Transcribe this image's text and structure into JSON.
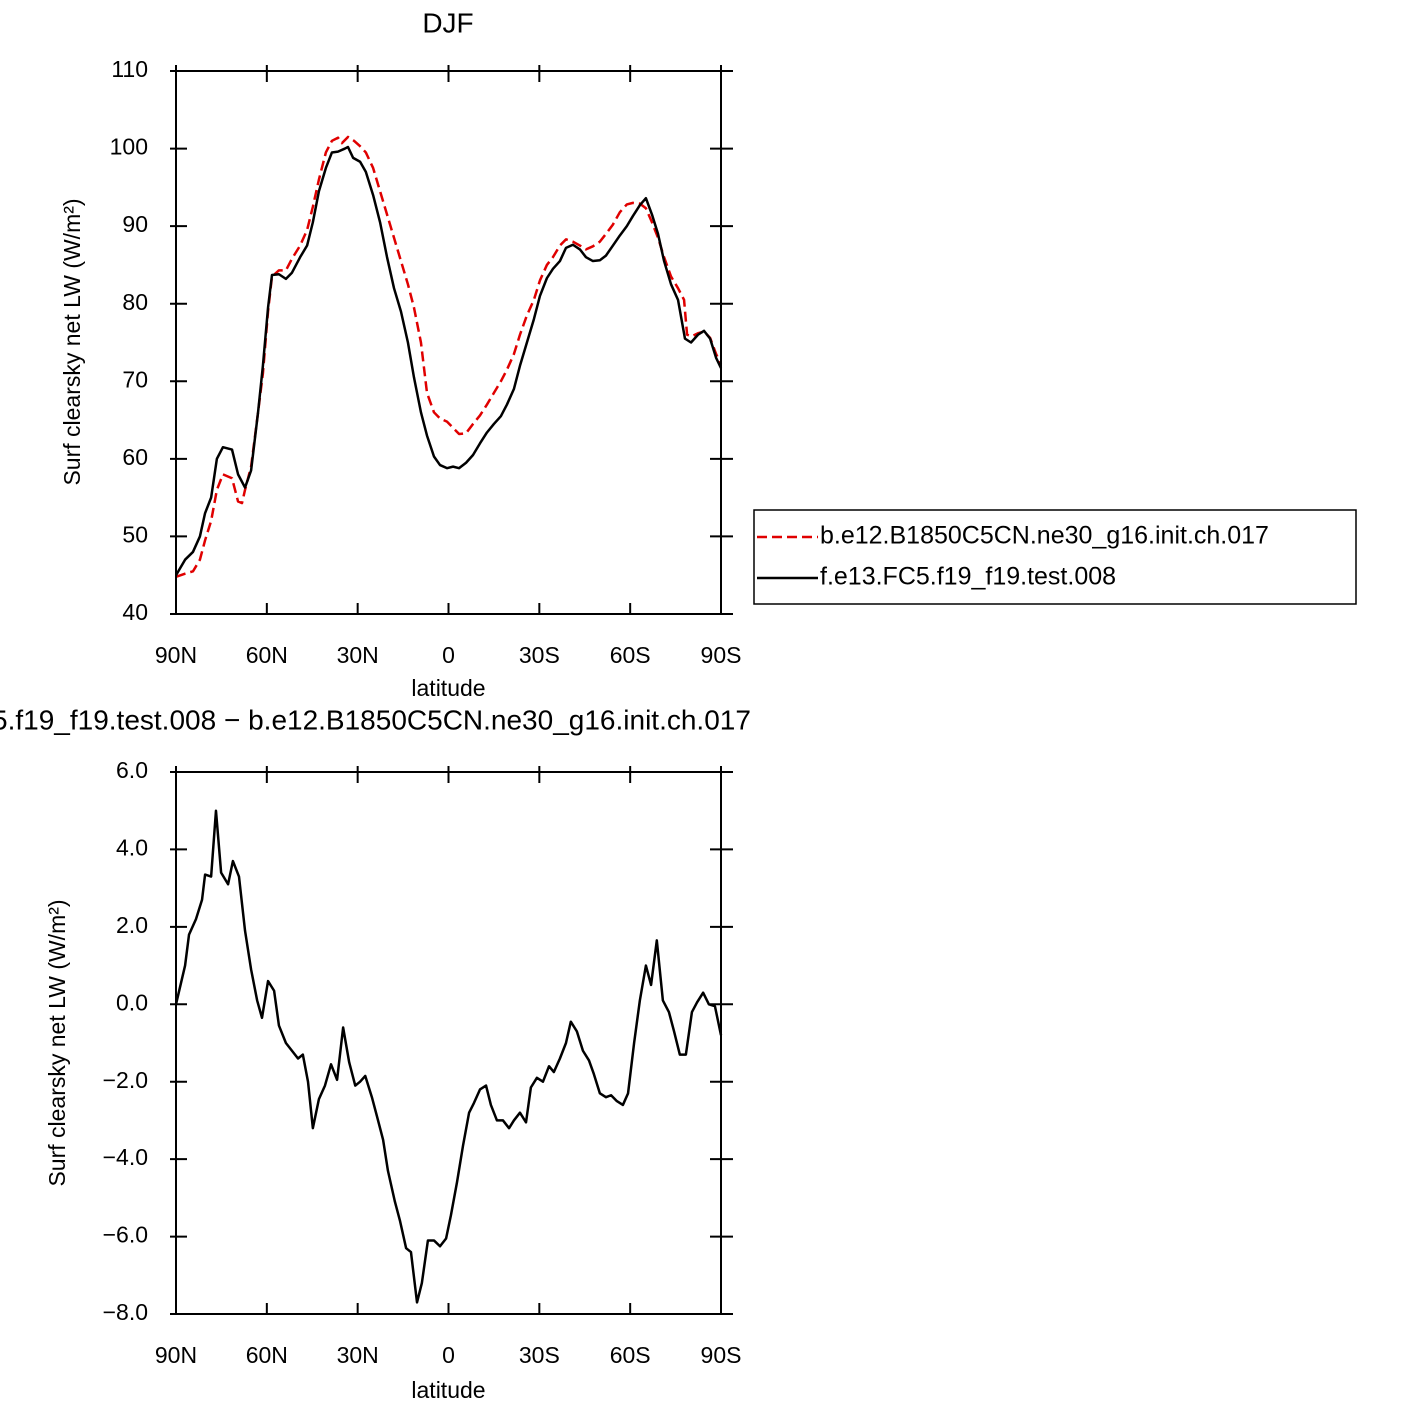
{
  "chart_data": [
    {
      "type": "line",
      "title": "DJF",
      "xlabel": "latitude",
      "ylabel": "Surf clearsky net LW (W/m²)",
      "xlim": [
        90,
        -90
      ],
      "xticks": [
        {
          "value": 90,
          "label": "90N"
        },
        {
          "value": 60,
          "label": "60N"
        },
        {
          "value": 30,
          "label": "30N"
        },
        0,
        {
          "value": -30,
          "label": "30S"
        },
        {
          "value": -60,
          "label": "60S"
        },
        {
          "value": -90,
          "label": "90S"
        }
      ],
      "ylim": [
        40,
        110
      ],
      "yticks": [
        40,
        50,
        60,
        70,
        80,
        90,
        100,
        110
      ],
      "legend": true,
      "series": [
        {
          "name": "b.e12.B1850C5CN.ne30_g16.init.ch.017",
          "color": "#e00000",
          "dash": "dashed",
          "x": [
            90,
            87.0,
            84.4,
            82.1,
            80.4,
            78.4,
            76.5,
            74.5,
            71.5,
            69.5,
            68.2,
            67.2,
            65.2,
            62.9,
            61.3,
            59.6,
            58.3,
            56.0,
            53.7,
            51.7,
            49.0,
            46.7,
            44.8,
            42.8,
            40.5,
            38.5,
            36.5,
            35.2,
            33.2,
            31.2,
            29.2,
            27.3,
            24.9,
            22.6,
            20.3,
            18.0,
            15.7,
            13.4,
            11.4,
            9.1,
            7.1,
            4.8,
            2.8,
            0.5,
            -1.5,
            -3.5,
            -5.8,
            -8.1,
            -10.4,
            -12.7,
            -15.0,
            -17.3,
            -19.3,
            -21.6,
            -23.6,
            -25.9,
            -28.2,
            -30.2,
            -32.5,
            -34.5,
            -36.8,
            -38.8,
            -41.1,
            -43.4,
            -45.4,
            -47.7,
            -50.0,
            -52.0,
            -54.3,
            -56.6,
            -58.9,
            -60.9,
            -63.2,
            -65.2,
            -67.2,
            -69.2,
            -71.2,
            -73.5,
            -75.8,
            -77.8,
            -78.8,
            -80.4,
            -82.4,
            -84.4,
            -86.4,
            -88.4,
            -90
          ],
          "values": [
            44.8,
            45.2,
            45.5,
            47,
            49.5,
            52,
            56,
            58,
            57.5,
            54.5,
            54.3,
            56,
            59,
            66,
            71,
            79,
            83.5,
            84.3,
            84.3,
            85.8,
            87.5,
            89.5,
            92.5,
            96,
            99.5,
            101,
            101.4,
            100.7,
            101.5,
            101,
            100.3,
            99.5,
            97.5,
            94.5,
            91.5,
            88.5,
            85.5,
            82.5,
            79.5,
            75,
            68.5,
            66,
            65.2,
            64.8,
            64,
            63.2,
            63.3,
            64.5,
            65.6,
            67,
            68.5,
            70,
            71.5,
            73.5,
            76,
            78.5,
            80.5,
            83,
            85,
            86,
            87.5,
            88.3,
            88,
            87.5,
            87,
            87.4,
            88,
            89,
            90.2,
            91.8,
            92.8,
            93,
            92.9,
            92.3,
            90.5,
            88.5,
            86,
            83.5,
            82,
            80.5,
            76,
            75.8,
            76.2,
            76.4,
            75.6,
            73.5,
            72.2
          ]
        },
        {
          "name": "f.e13.FC5.f19_f19.test.008",
          "color": "#000000",
          "dash": "solid",
          "x": [
            90,
            87.0,
            84.4,
            82.1,
            80.4,
            78.4,
            76.5,
            74.5,
            71.5,
            69.5,
            67.2,
            65.2,
            62.9,
            61.3,
            59.6,
            58.3,
            56.0,
            53.7,
            51.7,
            49.0,
            46.7,
            44.8,
            42.8,
            40.5,
            38.5,
            36.5,
            34.2,
            33.2,
            31.5,
            29.2,
            27.3,
            24.9,
            22.6,
            20.3,
            18.0,
            15.7,
            13.4,
            11.4,
            9.1,
            7.1,
            4.8,
            2.8,
            0.5,
            -1.5,
            -3.5,
            -5.8,
            -8.1,
            -10.4,
            -12.7,
            -15.0,
            -17.3,
            -19.3,
            -21.6,
            -23.6,
            -25.9,
            -28.2,
            -30.2,
            -32.5,
            -34.5,
            -36.8,
            -38.8,
            -41.1,
            -43.4,
            -45.4,
            -47.7,
            -50.0,
            -52.0,
            -54.3,
            -56.6,
            -58.9,
            -60.9,
            -63.2,
            -65.2,
            -67.2,
            -69.2,
            -71.2,
            -73.5,
            -75.8,
            -78.1,
            -80.1,
            -82.4,
            -84.4,
            -86.4,
            -88.4,
            -90
          ],
          "values": [
            45,
            47,
            48,
            50,
            53,
            55,
            60,
            61.5,
            61.2,
            58,
            56.3,
            58.5,
            66,
            72,
            79.5,
            83.7,
            83.8,
            83.2,
            84,
            86,
            87.5,
            90.5,
            94.5,
            97.5,
            99.5,
            99.6,
            100,
            100.2,
            98.8,
            98.3,
            97,
            94,
            90.5,
            86,
            82,
            79,
            75,
            70.5,
            66,
            63,
            60.3,
            59.2,
            58.8,
            59,
            58.8,
            59.5,
            60.5,
            62,
            63.4,
            64.5,
            65.5,
            67,
            69,
            72,
            75,
            78,
            81,
            83.3,
            84.5,
            85.5,
            87.2,
            87.6,
            87,
            86,
            85.5,
            85.6,
            86.2,
            87.5,
            88.8,
            90,
            91.3,
            92.7,
            93.6,
            91.5,
            89,
            85.5,
            82.5,
            80.5,
            75.5,
            75,
            76,
            76.5,
            75.5,
            73,
            71.7
          ]
        }
      ]
    },
    {
      "type": "line",
      "title": "5.f19_f19.test.008 − b.e12.B1850C5CN.ne30_g16.init.ch.017",
      "xlabel": "latitude",
      "ylabel": "Surf clearsky net LW (W/m²)",
      "xlim": [
        90,
        -90
      ],
      "xticks": [
        {
          "value": 90,
          "label": "90N"
        },
        {
          "value": 60,
          "label": "60N"
        },
        {
          "value": 30,
          "label": "30N"
        },
        0,
        {
          "value": -30,
          "label": "30S"
        },
        {
          "value": -60,
          "label": "60S"
        },
        {
          "value": -90,
          "label": "90S"
        }
      ],
      "ylim": [
        -8,
        6
      ],
      "yticks": [
        {
          "value": -8,
          "label": "−8.0"
        },
        {
          "value": -6,
          "label": "−6.0"
        },
        {
          "value": -4,
          "label": "−4.0"
        },
        {
          "value": -2,
          "label": "−2.0"
        },
        {
          "value": 0,
          "label": "0.0"
        },
        {
          "value": 2,
          "label": "2.0"
        },
        {
          "value": 4,
          "label": "4.0"
        },
        {
          "value": 6,
          "label": "6.0"
        }
      ],
      "legend": false,
      "series": [
        {
          "color": "#000000",
          "dash": "solid",
          "x": [
            90,
            87.0,
            85.7,
            83.4,
            81.4,
            80.4,
            78.4,
            76.8,
            75.1,
            72.8,
            71.2,
            69.2,
            67.2,
            65.2,
            63.2,
            61.6,
            59.6,
            57.6,
            56.0,
            53.7,
            51.7,
            49.7,
            48.1,
            46.4,
            44.8,
            42.8,
            40.8,
            38.8,
            36.8,
            34.8,
            32.8,
            30.8,
            29.2,
            27.5,
            25.3,
            23.6,
            21.6,
            20.0,
            17.7,
            16.0,
            14.0,
            12.4,
            10.4,
            8.8,
            6.8,
            4.8,
            2.8,
            0.8,
            -0.8,
            -2.8,
            -4.8,
            -6.8,
            -8.4,
            -10.4,
            -12.4,
            -14.0,
            -16.0,
            -18.0,
            -20.0,
            -21.6,
            -23.6,
            -25.6,
            -27.2,
            -29.2,
            -31.2,
            -33.2,
            -34.8,
            -36.8,
            -38.8,
            -40.4,
            -42.4,
            -44.4,
            -46.4,
            -48.0,
            -50.0,
            -52.0,
            -53.7,
            -55.6,
            -57.6,
            -59.3,
            -61.3,
            -63.2,
            -65.2,
            -66.9,
            -68.8,
            -70.8,
            -72.8,
            -74.5,
            -76.4,
            -78.4,
            -80.4,
            -82.1,
            -84.1,
            -86.0,
            -88.0,
            -90
          ],
          "values": [
            0,
            1.0,
            1.8,
            2.2,
            2.7,
            3.35,
            3.3,
            5.0,
            3.4,
            3.1,
            3.7,
            3.3,
            1.9,
            0.9,
            0.1,
            -0.35,
            0.6,
            0.35,
            -0.55,
            -1.0,
            -1.2,
            -1.4,
            -1.3,
            -2.0,
            -3.2,
            -2.45,
            -2.1,
            -1.55,
            -1.95,
            -0.6,
            -1.5,
            -2.1,
            -2.0,
            -1.85,
            -2.4,
            -2.9,
            -3.5,
            -4.3,
            -5.1,
            -5.6,
            -6.3,
            -6.4,
            -7.7,
            -7.2,
            -6.1,
            -6.1,
            -6.25,
            -6.05,
            -5.45,
            -4.6,
            -3.65,
            -2.8,
            -2.55,
            -2.2,
            -2.1,
            -2.6,
            -3.0,
            -3.0,
            -3.2,
            -3.0,
            -2.8,
            -3.05,
            -2.15,
            -1.9,
            -2.0,
            -1.6,
            -1.75,
            -1.4,
            -1.0,
            -0.45,
            -0.7,
            -1.2,
            -1.45,
            -1.8,
            -2.3,
            -2.4,
            -2.35,
            -2.5,
            -2.6,
            -2.3,
            -1.0,
            0.1,
            1.0,
            0.5,
            1.65,
            0.1,
            -0.2,
            -0.7,
            -1.3,
            -1.3,
            -0.2,
            0.05,
            0.3,
            0,
            -0.05,
            -0.8
          ]
        }
      ]
    }
  ]
}
